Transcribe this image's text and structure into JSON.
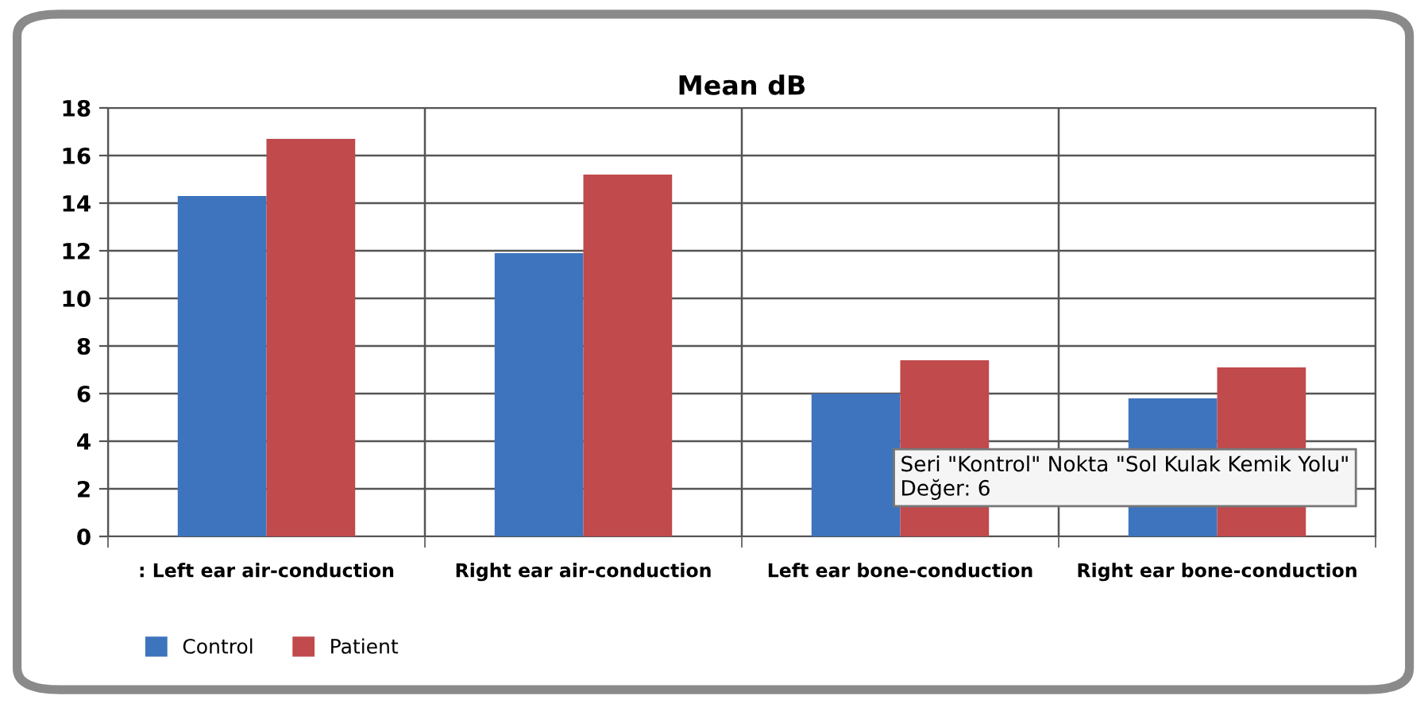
{
  "chart_data": {
    "type": "bar",
    "title": "Mean dB",
    "categories": [
      ": Left ear air-conduction",
      "Right ear air-conduction",
      "Left ear bone-conduction",
      "Right ear bone-conduction"
    ],
    "series": [
      {
        "name": "Control",
        "color": "#3d74bd",
        "values": [
          14.3,
          11.9,
          6.0,
          5.8
        ]
      },
      {
        "name": "Patient",
        "color": "#c04a4c",
        "values": [
          16.7,
          15.2,
          7.4,
          7.1
        ]
      }
    ],
    "ylim": [
      0,
      18
    ],
    "yticks": [
      0,
      2,
      4,
      6,
      8,
      10,
      12,
      14,
      16,
      18
    ],
    "grid": true,
    "legend": "bottom left",
    "annotations": [
      "Seri \"Kontrol\" Nokta \"Sol Kulak Kemik Yolu\"\nDeğer: 6"
    ]
  }
}
